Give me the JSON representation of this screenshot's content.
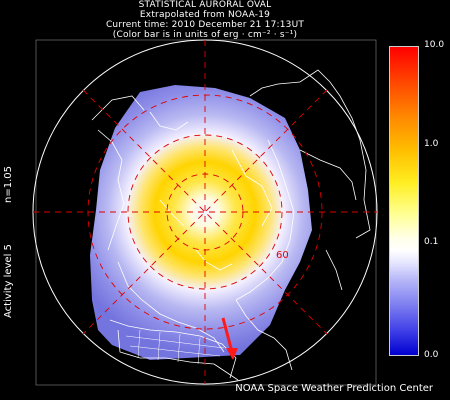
{
  "header": {
    "line1": "STATISTICAL AURORAL OVAL",
    "line2": "Extrapolated from NOAA-19",
    "line3": "Current time: 2010 December 21 17:13UT",
    "line4": "(Color bar is in units of erg · cm⁻² · s⁻¹)"
  },
  "left_labels": {
    "n_value": "n=1.05",
    "activity": "Activity level 5"
  },
  "map": {
    "latitude_label": "60"
  },
  "colorbar": {
    "ticks": [
      "10.0",
      "1.0",
      "0.1",
      "0.0"
    ]
  },
  "footer": {
    "credit": "NOAA Space Weather Prediction Center"
  },
  "colors": {
    "oval_peak": "#ffd800",
    "grid_lines": "#e00000",
    "background": "#000000",
    "arrow": "#ff1a1a"
  }
}
